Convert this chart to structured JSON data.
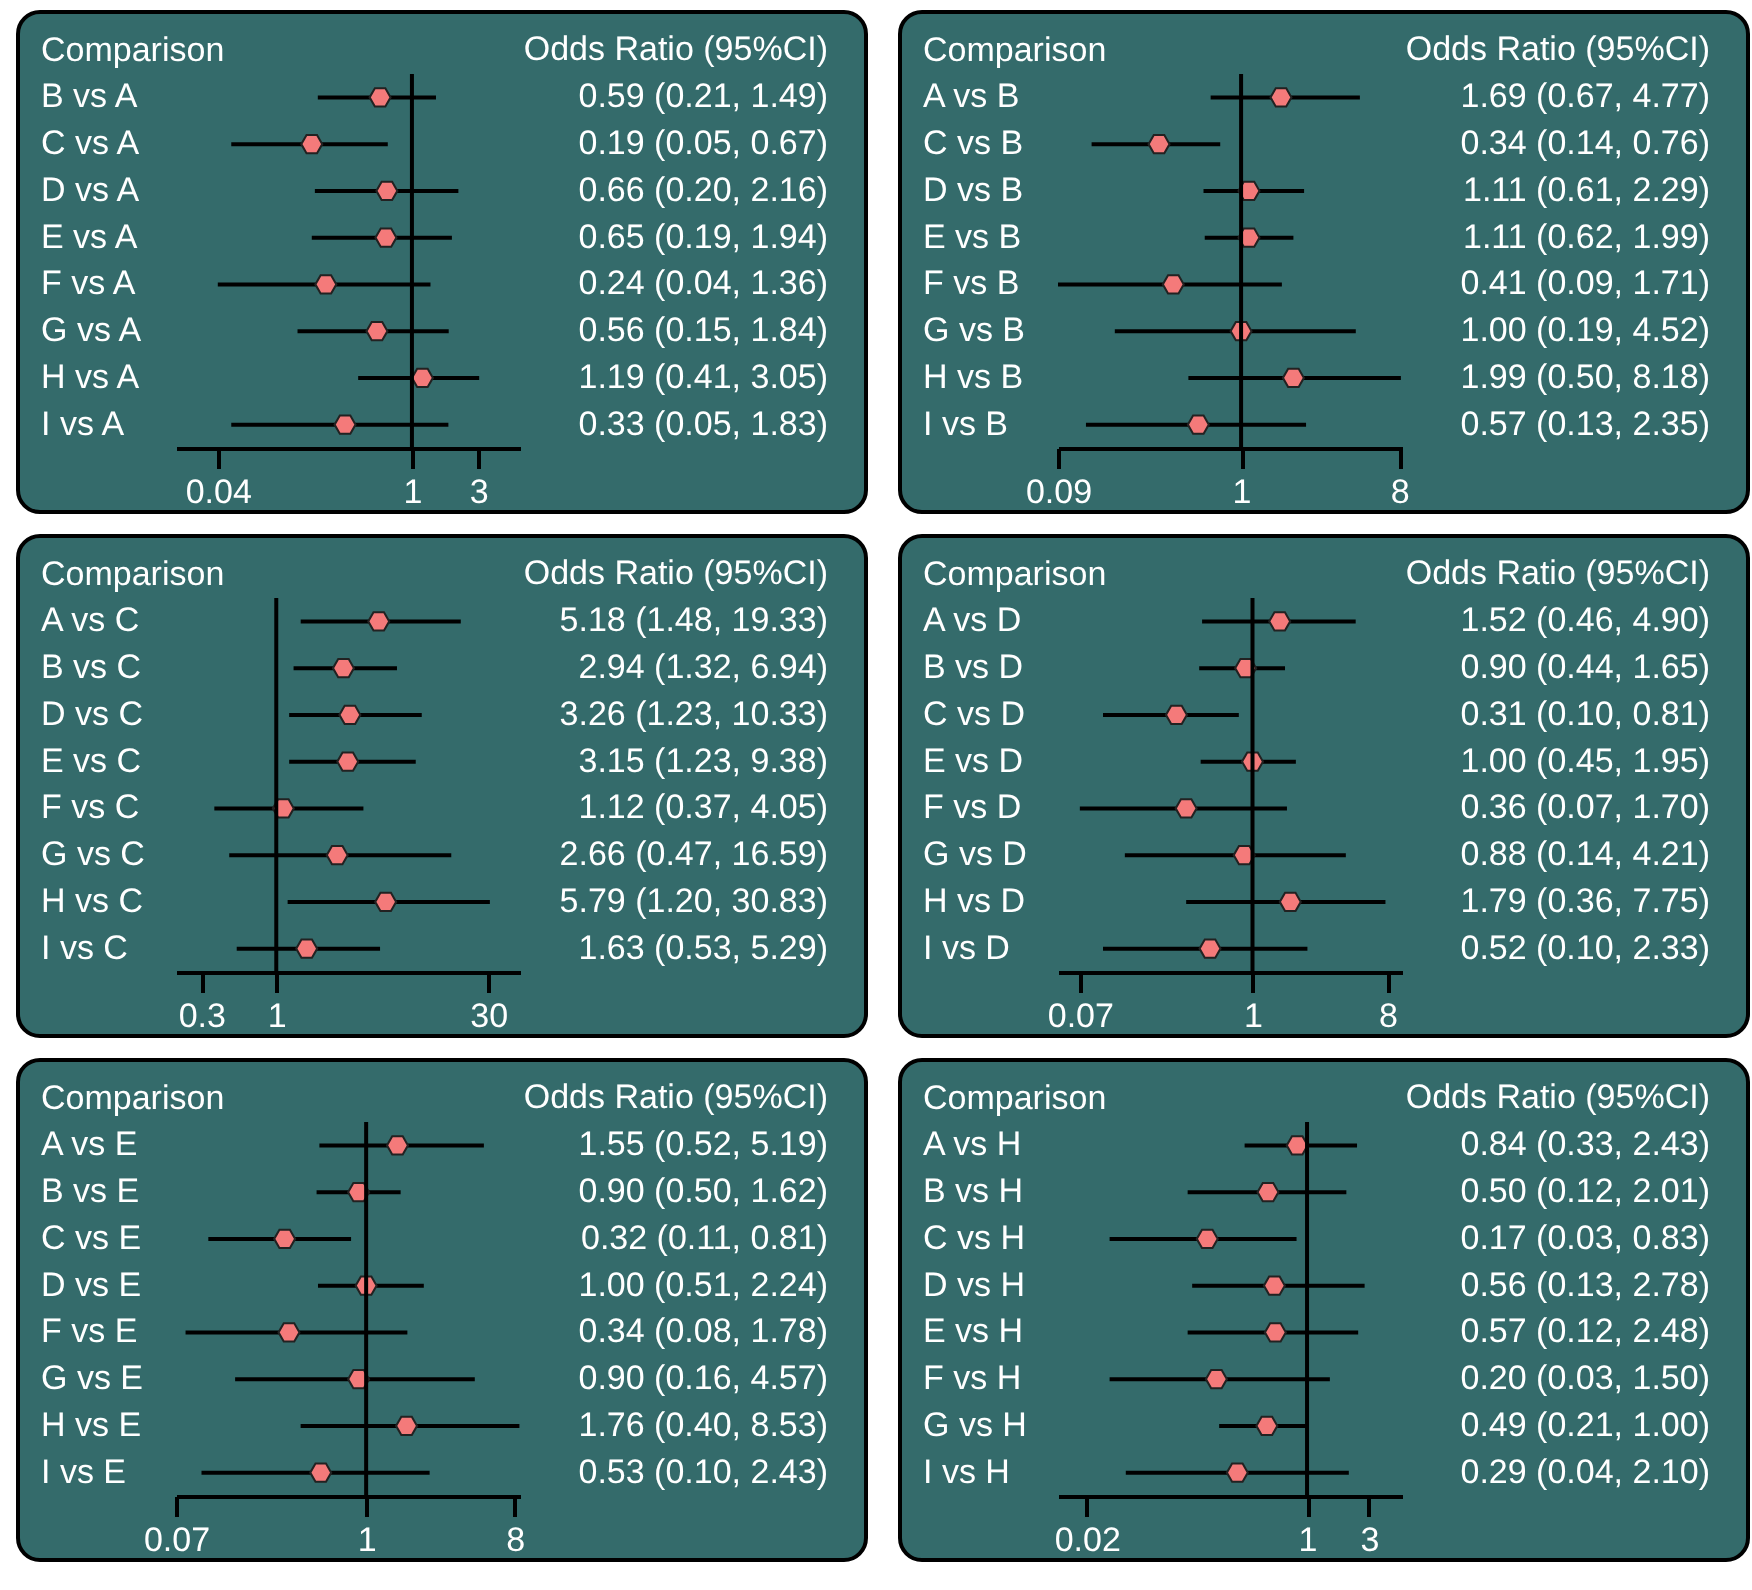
{
  "chart_data": [
    {
      "type": "scatter",
      "orientation": "horizontal",
      "color": "#f47a7a",
      "log": "x",
      "ylabel": "Comparison",
      "annotations": [
        "Odds Ratio (95%CI)"
      ],
      "xlim": [
        0.02,
        6
      ],
      "xticks": [
        0.04,
        1,
        3
      ],
      "ref_lines": [
        {
          "axis": "x",
          "value": 1
        }
      ],
      "categories": [
        "B vs A",
        "C vs A",
        "D vs A",
        "E vs A",
        "F vs A",
        "G vs A",
        "H vs A",
        "I vs A"
      ],
      "values": [
        0.59,
        0.19,
        0.66,
        0.65,
        0.24,
        0.56,
        1.19,
        0.33
      ],
      "errors": [
        [
          0.21,
          1.49
        ],
        [
          0.05,
          0.67
        ],
        [
          0.2,
          2.16
        ],
        [
          0.19,
          1.94
        ],
        [
          0.04,
          1.36
        ],
        [
          0.15,
          1.84
        ],
        [
          0.41,
          3.05
        ],
        [
          0.05,
          1.83
        ]
      ],
      "value_labels": [
        "0.59 (0.21, 1.49)",
        "0.19 (0.05, 0.67)",
        "0.66 (0.20, 2.16)",
        "0.65 (0.19, 1.94)",
        "0.24 (0.04, 1.36)",
        "0.56 (0.15, 1.84)",
        "1.19 (0.41, 3.05)",
        "0.33 (0.05, 1.83)"
      ]
    },
    {
      "type": "scatter",
      "orientation": "horizontal",
      "color": "#f47a7a",
      "log": "x",
      "ylabel": "Comparison",
      "annotations": [
        "Odds Ratio (95%CI)"
      ],
      "xlim": [
        0.09,
        8.3
      ],
      "xticks": [
        0.09,
        1,
        8
      ],
      "ref_lines": [
        {
          "axis": "x",
          "value": 1
        }
      ],
      "categories": [
        "A vs B",
        "C vs B",
        "D vs B",
        "E vs B",
        "F vs B",
        "G vs B",
        "H vs B",
        "I vs B"
      ],
      "values": [
        1.69,
        0.34,
        1.11,
        1.11,
        0.41,
        1.0,
        1.99,
        0.57
      ],
      "errors": [
        [
          0.67,
          4.77
        ],
        [
          0.14,
          0.76
        ],
        [
          0.61,
          2.29
        ],
        [
          0.62,
          1.99
        ],
        [
          0.09,
          1.71
        ],
        [
          0.19,
          4.52
        ],
        [
          0.5,
          8.18
        ],
        [
          0.13,
          2.35
        ]
      ],
      "value_labels": [
        "1.69 (0.67, 4.77)",
        "0.34 (0.14, 0.76)",
        "1.11 (0.61, 2.29)",
        "1.11 (0.62, 1.99)",
        "0.41 (0.09, 1.71)",
        "1.00 (0.19, 4.52)",
        "1.99 (0.50, 8.18)",
        "0.57 (0.13, 2.35)"
      ]
    },
    {
      "type": "scatter",
      "orientation": "horizontal",
      "color": "#f47a7a",
      "log": "x",
      "ylabel": "Comparison",
      "annotations": [
        "Odds Ratio (95%CI)"
      ],
      "xlim": [
        0.2,
        50
      ],
      "xticks": [
        0.3,
        1,
        30
      ],
      "ref_lines": [
        {
          "axis": "x",
          "value": 1
        }
      ],
      "categories": [
        "A vs C",
        "B vs C",
        "D vs C",
        "E vs C",
        "F vs C",
        "G vs C",
        "H vs C",
        "I vs C"
      ],
      "values": [
        5.18,
        2.94,
        3.26,
        3.15,
        1.12,
        2.66,
        5.79,
        1.63
      ],
      "errors": [
        [
          1.48,
          19.33
        ],
        [
          1.32,
          6.94
        ],
        [
          1.23,
          10.33
        ],
        [
          1.23,
          9.38
        ],
        [
          0.37,
          4.05
        ],
        [
          0.47,
          16.59
        ],
        [
          1.2,
          30.83
        ],
        [
          0.53,
          5.29
        ]
      ],
      "value_labels": [
        "5.18 (1.48, 19.33)",
        "2.94 (1.32, 6.94)",
        "3.26 (1.23, 10.33)",
        "3.15 (1.23, 9.38)",
        "1.12 (0.37, 4.05)",
        "2.66 (0.47, 16.59)",
        "5.79 (1.20, 30.83)",
        "1.63 (0.53, 5.29)"
      ]
    },
    {
      "type": "scatter",
      "orientation": "horizontal",
      "color": "#f47a7a",
      "log": "x",
      "ylabel": "Comparison",
      "annotations": [
        "Odds Ratio (95%CI)"
      ],
      "xlim": [
        0.05,
        10
      ],
      "xticks": [
        0.07,
        1,
        8
      ],
      "ref_lines": [
        {
          "axis": "x",
          "value": 1
        }
      ],
      "categories": [
        "A vs D",
        "B vs D",
        "C vs D",
        "E vs D",
        "F vs D",
        "G vs D",
        "H vs D",
        "I vs D"
      ],
      "values": [
        1.52,
        0.9,
        0.31,
        1.0,
        0.36,
        0.88,
        1.79,
        0.52
      ],
      "errors": [
        [
          0.46,
          4.9
        ],
        [
          0.44,
          1.65
        ],
        [
          0.1,
          0.81
        ],
        [
          0.45,
          1.95
        ],
        [
          0.07,
          1.7
        ],
        [
          0.14,
          4.21
        ],
        [
          0.36,
          7.75
        ],
        [
          0.1,
          2.33
        ]
      ],
      "value_labels": [
        "1.52 (0.46, 4.90)",
        "0.90 (0.44, 1.65)",
        "0.31 (0.10, 0.81)",
        "1.00 (0.45, 1.95)",
        "0.36 (0.07, 1.70)",
        "0.88 (0.14, 4.21)",
        "1.79 (0.36, 7.75)",
        "0.52 (0.10, 2.33)"
      ]
    },
    {
      "type": "scatter",
      "orientation": "horizontal",
      "color": "#f47a7a",
      "log": "x",
      "ylabel": "Comparison",
      "annotations": [
        "Odds Ratio (95%CI)"
      ],
      "xlim": [
        0.07,
        8.6
      ],
      "xticks": [
        0.07,
        1,
        8
      ],
      "ref_lines": [
        {
          "axis": "x",
          "value": 1
        }
      ],
      "categories": [
        "A vs E",
        "B vs E",
        "C vs E",
        "D vs E",
        "F vs E",
        "G vs E",
        "H vs E",
        "I vs E"
      ],
      "values": [
        1.55,
        0.9,
        0.32,
        1.0,
        0.34,
        0.9,
        1.76,
        0.53
      ],
      "errors": [
        [
          0.52,
          5.19
        ],
        [
          0.5,
          1.62
        ],
        [
          0.11,
          0.81
        ],
        [
          0.51,
          2.24
        ],
        [
          0.08,
          1.78
        ],
        [
          0.16,
          4.57
        ],
        [
          0.4,
          8.53
        ],
        [
          0.1,
          2.43
        ]
      ],
      "value_labels": [
        "1.55 (0.52, 5.19)",
        "0.90 (0.50, 1.62)",
        "0.32 (0.11, 0.81)",
        "1.00 (0.51, 2.24)",
        "0.34 (0.08, 1.78)",
        "0.90 (0.16, 4.57)",
        "1.76 (0.40, 8.53)",
        "0.53 (0.10, 2.43)"
      ]
    },
    {
      "type": "scatter",
      "orientation": "horizontal",
      "color": "#f47a7a",
      "log": "x",
      "ylabel": "Comparison",
      "annotations": [
        "Odds Ratio (95%CI)"
      ],
      "xlim": [
        0.012,
        5.4
      ],
      "xticks": [
        0.02,
        1,
        3
      ],
      "ref_lines": [
        {
          "axis": "x",
          "value": 1
        }
      ],
      "categories": [
        "A vs H",
        "B vs H",
        "C vs H",
        "D vs H",
        "E vs H",
        "F vs H",
        "G vs H",
        "I vs H"
      ],
      "values": [
        0.84,
        0.5,
        0.17,
        0.56,
        0.57,
        0.2,
        0.49,
        0.29
      ],
      "errors": [
        [
          0.33,
          2.43
        ],
        [
          0.12,
          2.01
        ],
        [
          0.03,
          0.83
        ],
        [
          0.13,
          2.78
        ],
        [
          0.12,
          2.48
        ],
        [
          0.03,
          1.5
        ],
        [
          0.21,
          1.0
        ],
        [
          0.04,
          2.1
        ]
      ],
      "value_labels": [
        "0.84 (0.33, 2.43)",
        "0.50 (0.12, 2.01)",
        "0.17 (0.03, 0.83)",
        "0.56 (0.13, 2.78)",
        "0.57 (0.12, 2.48)",
        "0.20 (0.03, 1.50)",
        "0.49 (0.21, 1.00)",
        "0.29 (0.04, 2.10)"
      ]
    }
  ]
}
